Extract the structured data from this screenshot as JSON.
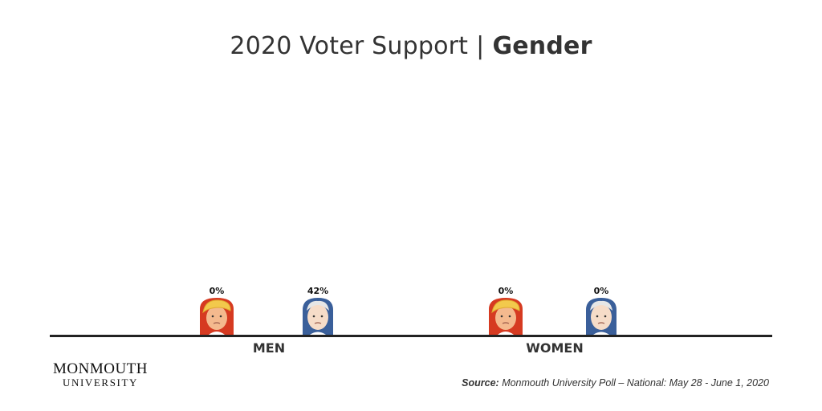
{
  "title": {
    "main": "2020 Voter Support",
    "separator": "|",
    "bold": "Gender"
  },
  "chart_data": {
    "type": "bar",
    "title": "2020 Voter Support | Gender",
    "categories": [
      "MEN",
      "WOMEN"
    ],
    "series": [
      {
        "values": [
          0,
          0
        ],
        "value_labels": [
          "0%",
          "0%"
        ],
        "color": "#d63a21"
      },
      {
        "values": [
          42,
          0
        ],
        "value_labels": [
          "42%",
          "0%"
        ],
        "color": "#3a5f9a"
      }
    ],
    "ylim": [
      0,
      100
    ],
    "grid": false
  },
  "footer": {
    "logo_line1": "MONMOUTH",
    "logo_line2": "UNIVERSITY",
    "source_label": "Source:",
    "source_text": "Monmouth University Poll – National: May 28 - June 1, 2020"
  }
}
